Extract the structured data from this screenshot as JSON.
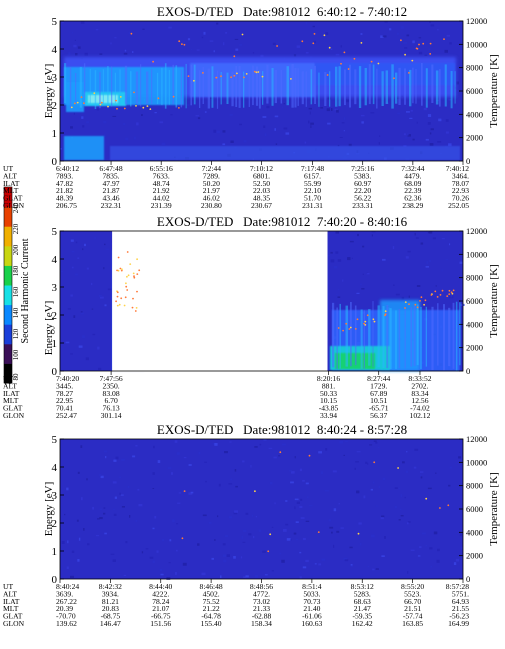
{
  "colorbar": {
    "label": "Second Harmonic Current",
    "ticks": [
      "240",
      "220",
      "200",
      "180",
      "160",
      "140",
      "120",
      "100",
      "80"
    ],
    "colors": [
      "#000000",
      "#3a0f57",
      "#1a3fd9",
      "#0a88ff",
      "#17e0e6",
      "#19d14a",
      "#c8d612",
      "#f0b000",
      "#e84100",
      "#c70000"
    ]
  },
  "chart_data": [
    {
      "type": "heatmap",
      "title": "EXOS-D/TED   Date:981012  6:40:12 - 7:40:12",
      "ylabel": "Energy [eV]",
      "y2label": "Temperature [K]",
      "ylim": [
        0,
        5
      ],
      "y2lim": [
        0,
        12000
      ],
      "yticks": [
        "0",
        "1",
        "2",
        "3",
        "4",
        "5"
      ],
      "y2ticks": [
        "0",
        "2000",
        "4000",
        "6000",
        "8000",
        "10000",
        "12000"
      ],
      "data_gaps": [],
      "orbit_table": {
        "row_labels": [
          "UT",
          "ALT",
          "ILAT",
          "MLT",
          "GLAT",
          "GLON"
        ],
        "columns": [
          [
            "6:40:12",
            "7893.",
            "47.82",
            "21.82",
            "48.39",
            "206.75"
          ],
          [
            "6:47:48",
            "7835.",
            "47.97",
            "21.87",
            "43.46",
            "232.31"
          ],
          [
            "6:55:16",
            "7633.",
            "48.74",
            "21.92",
            "44.02",
            "231.39"
          ],
          [
            "7:2:44",
            "7289.",
            "50.20",
            "21.97",
            "46.02",
            "230.80"
          ],
          [
            "7:10:12",
            "6801.",
            "52.50",
            "22.03",
            "48.35",
            "230.67"
          ],
          [
            "7:17:48",
            "6157.",
            "55.99",
            "22.10",
            "51.70",
            "231.31"
          ],
          [
            "7:25:16",
            "5383.",
            "60.97",
            "22.20",
            "56.22",
            "233.31"
          ],
          [
            "7:32:44",
            "4479.",
            "68.09",
            "22.39",
            "62.36",
            "238.29"
          ],
          [
            "7:40:12",
            "3464.",
            "78.07",
            "22.93",
            "70.26",
            "252.05"
          ]
        ]
      }
    },
    {
      "type": "heatmap",
      "title": "EXOS-D/TED   Date:981012  7:40:20 - 8:40:16",
      "ylabel": "Energy [eV]",
      "y2label": "Temperature [K]",
      "ylim": [
        0,
        5
      ],
      "y2lim": [
        0,
        12000
      ],
      "yticks": [
        "0",
        "1",
        "2",
        "3",
        "4",
        "5"
      ],
      "y2ticks": [
        "0",
        "2000",
        "4000",
        "6000",
        "8000",
        "10000",
        "12000"
      ],
      "data_gaps": [
        {
          "from": "7:47:56",
          "to": "8:20:16"
        }
      ],
      "orbit_table": {
        "row_labels": [
          "UT",
          "ALT",
          "ILAT",
          "MLT",
          "GLAT",
          "GLON"
        ],
        "columns": [
          [
            "7:40:20",
            "3445.",
            "78.27",
            "22.95",
            "70.41",
            "252.47"
          ],
          [
            "7:47:56",
            "2350.",
            "83.08",
            "6.70",
            "76.13",
            "301.14"
          ],
          [
            "8:20:16",
            "881.",
            "50.33",
            "10.15",
            "-43.85",
            "33.94"
          ],
          [
            "8:27:44",
            "1729.",
            "67.89",
            "10.51",
            "-65.71",
            "56.37"
          ],
          [
            "8:33:52",
            "2702.",
            "83.34",
            "12.56",
            "-74.02",
            "102.12"
          ]
        ]
      }
    },
    {
      "type": "heatmap",
      "title": "EXOS-D/TED   Date:981012  8:40:24 - 8:57:28",
      "ylabel": "Energy [eV]",
      "y2label": "Temperature [K]",
      "ylim": [
        0,
        5
      ],
      "y2lim": [
        0,
        12000
      ],
      "yticks": [
        "0",
        "1",
        "2",
        "3",
        "4",
        "5"
      ],
      "y2ticks": [
        "0",
        "2000",
        "4000",
        "6000",
        "8000",
        "10000",
        "12000"
      ],
      "data_gaps": [],
      "orbit_table": {
        "row_labels": [
          "UT",
          "ALT",
          "ILAT",
          "MLT",
          "GLAT",
          "GLON"
        ],
        "columns": [
          [
            "8:40:24",
            "3639.",
            "267.22",
            "20.39",
            "-70.70",
            "139.62"
          ],
          [
            "8:42:32",
            "3934.",
            "81.21",
            "20.83",
            "-68.75",
            "146.47"
          ],
          [
            "8:44:40",
            "4222.",
            "78.24",
            "21.07",
            "-66.75",
            "151.56"
          ],
          [
            "8:46:48",
            "4502.",
            "75.52",
            "21.22",
            "-64.78",
            "155.40"
          ],
          [
            "8:48:56",
            "4772.",
            "73.02",
            "21.33",
            "-62.88",
            "158.34"
          ],
          [
            "8:51:4",
            "5033.",
            "70.73",
            "21.40",
            "-61.06",
            "160.63"
          ],
          [
            "8:53:12",
            "5283.",
            "68.63",
            "21.47",
            "-59.35",
            "162.42"
          ],
          [
            "8:55:20",
            "5523.",
            "66.70",
            "21.51",
            "-57.74",
            "163.85"
          ],
          [
            "8:57:28",
            "5751.",
            "64.93",
            "21.55",
            "-56.23",
            "164.99"
          ]
        ]
      }
    }
  ]
}
